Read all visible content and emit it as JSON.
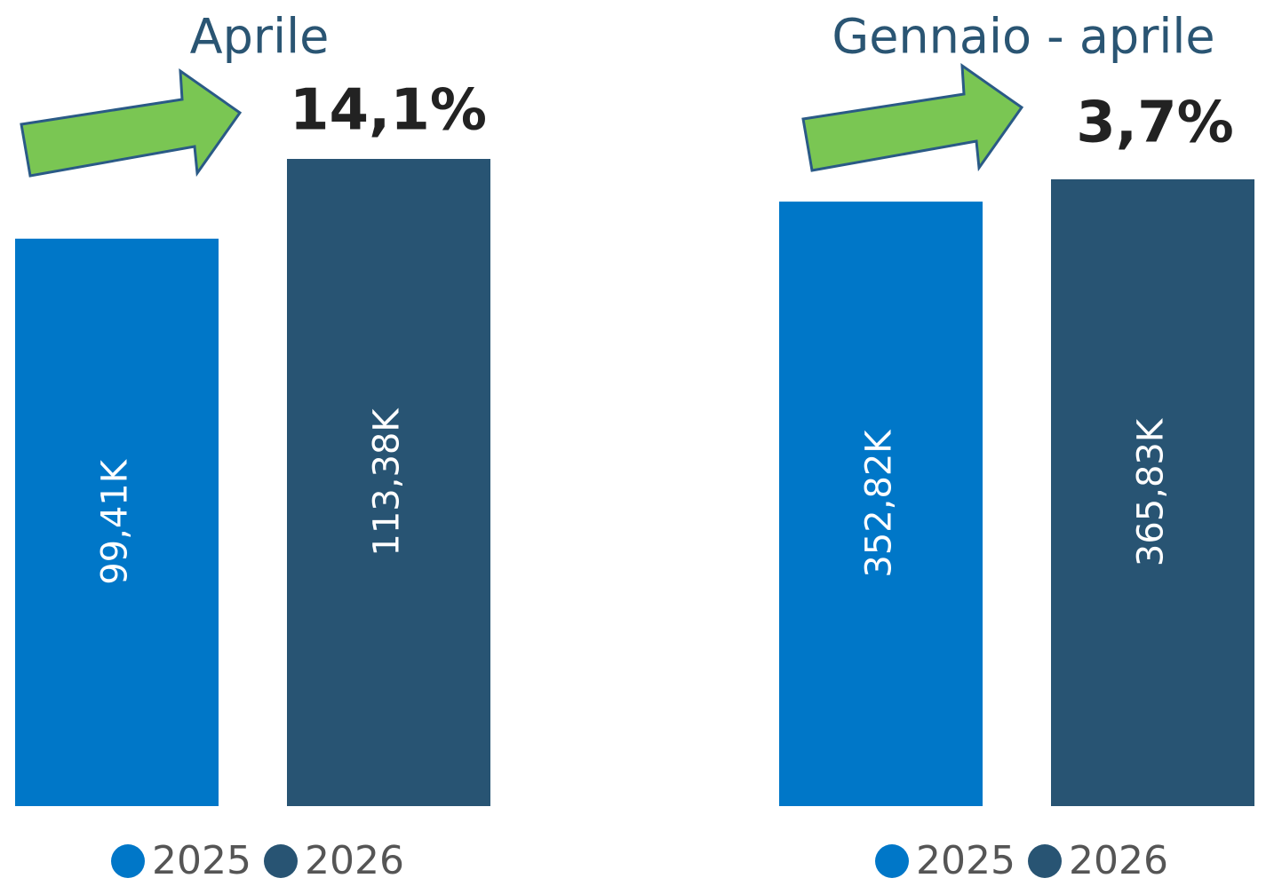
{
  "chart_data": [
    {
      "type": "bar",
      "title": "Aprile",
      "annotation": {
        "value": 14.1,
        "label": "14,1%"
      },
      "series": [
        {
          "name": "2025",
          "color": "#0077c8",
          "values": [
            99.41
          ],
          "value_labels": [
            "99,41K"
          ]
        },
        {
          "name": "2026",
          "color": "#285473",
          "values": [
            113.38
          ],
          "value_labels": [
            "113,38K"
          ]
        }
      ]
    },
    {
      "type": "bar",
      "title": "Gennaio - aprile",
      "annotation": {
        "value": 3.7,
        "label": "3,7%"
      },
      "series": [
        {
          "name": "2025",
          "color": "#0077c8",
          "values": [
            352.82
          ],
          "value_labels": [
            "352,82K"
          ]
        },
        {
          "name": "2026",
          "color": "#285473",
          "values": [
            365.83
          ],
          "value_labels": [
            "365,83K"
          ]
        }
      ]
    }
  ]
}
